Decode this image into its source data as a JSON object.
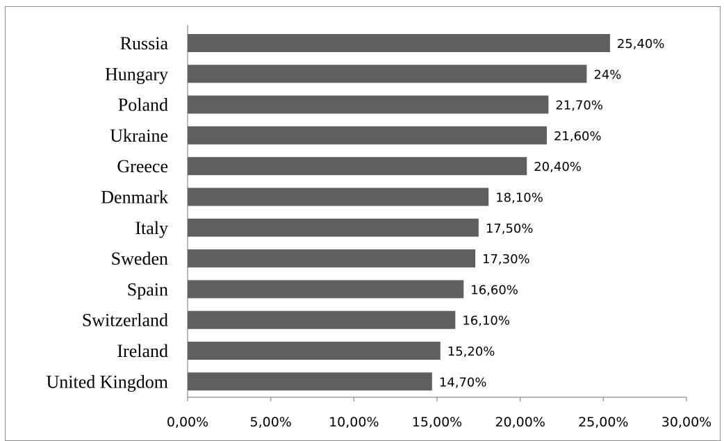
{
  "chart_data": {
    "type": "bar",
    "orientation": "horizontal",
    "title": "",
    "xlabel": "",
    "ylabel": "",
    "categories": [
      "Russia",
      "Hungary",
      "Poland",
      "Ukraine",
      "Greece",
      "Denmark",
      "Italy",
      "Sweden",
      "Spain",
      "Switzerland",
      "Ireland",
      "United Kingdom"
    ],
    "values": [
      25.4,
      24.0,
      21.7,
      21.6,
      20.4,
      18.1,
      17.5,
      17.3,
      16.6,
      16.1,
      15.2,
      14.7
    ],
    "data_labels": [
      "25,40%",
      "24%",
      "21,70%",
      "21,60%",
      "20,40%",
      "18,10%",
      "17,50%",
      "17,30%",
      "16,60%",
      "16,10%",
      "15,20%",
      "14,70%"
    ],
    "xlim": [
      0,
      30
    ],
    "x_ticks": [
      0,
      5,
      10,
      15,
      20,
      25,
      30
    ],
    "x_tick_labels": [
      "0,00%",
      "5,00%",
      "10,00%",
      "15,00%",
      "20,00%",
      "25,00%",
      "30,00%"
    ],
    "grid": false,
    "legend": "none",
    "bar_color": "#5f5f5f",
    "axis_color": "#8c8c8c"
  }
}
